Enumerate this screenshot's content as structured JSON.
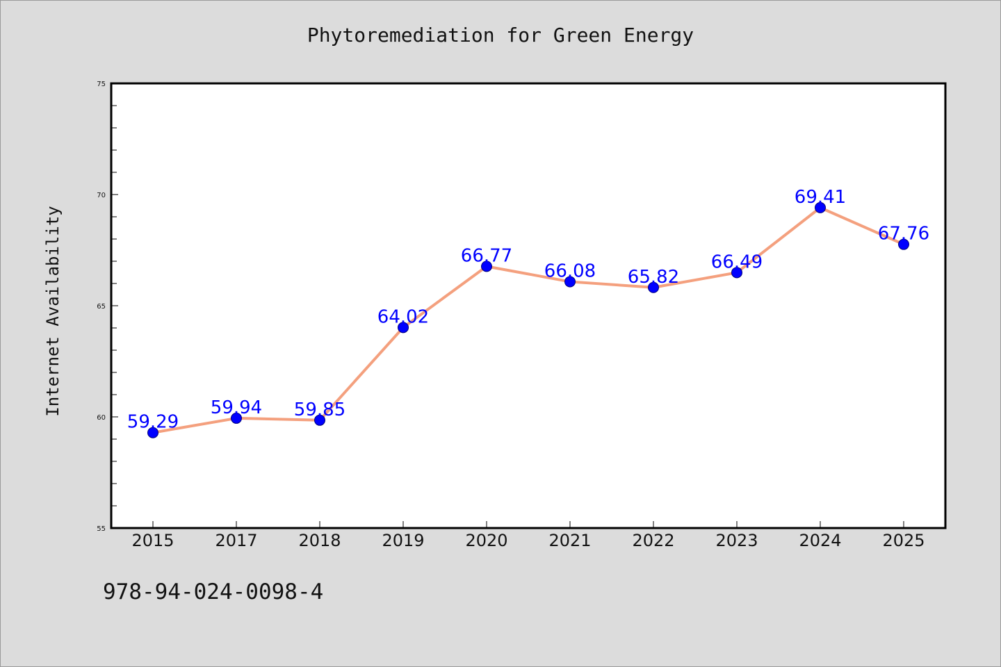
{
  "chart_data": {
    "type": "line",
    "title": "Phytoremediation for Green Energy",
    "xlabel": "",
    "ylabel": "Internet Availability",
    "categories": [
      "2015",
      "2017",
      "2018",
      "2019",
      "2020",
      "2021",
      "2022",
      "2023",
      "2024",
      "2025"
    ],
    "series": [
      {
        "values": [
          59.29,
          59.94,
          59.85,
          64.02,
          66.77,
          66.08,
          65.82,
          66.49,
          69.41,
          67.76
        ],
        "line_color": "#f4a07e",
        "marker_color": "#0000ff"
      }
    ],
    "data_labels": [
      "59.29",
      "59.94",
      "59.85",
      "64.02",
      "66.77",
      "66.08",
      "65.82",
      "66.49",
      "69.41",
      "67.76"
    ],
    "ylim": [
      55,
      75
    ],
    "yticks": [
      "55",
      "60",
      "65",
      "70",
      "75"
    ],
    "grid": false,
    "legend": "none"
  },
  "footer": {
    "isbn": "978-94-024-0098-4"
  },
  "colors": {
    "background": "#dcdcdc",
    "plot_background": "#ffffff",
    "line": "#f4a07e",
    "marker": "#0000ff",
    "label": "#0000ff"
  }
}
